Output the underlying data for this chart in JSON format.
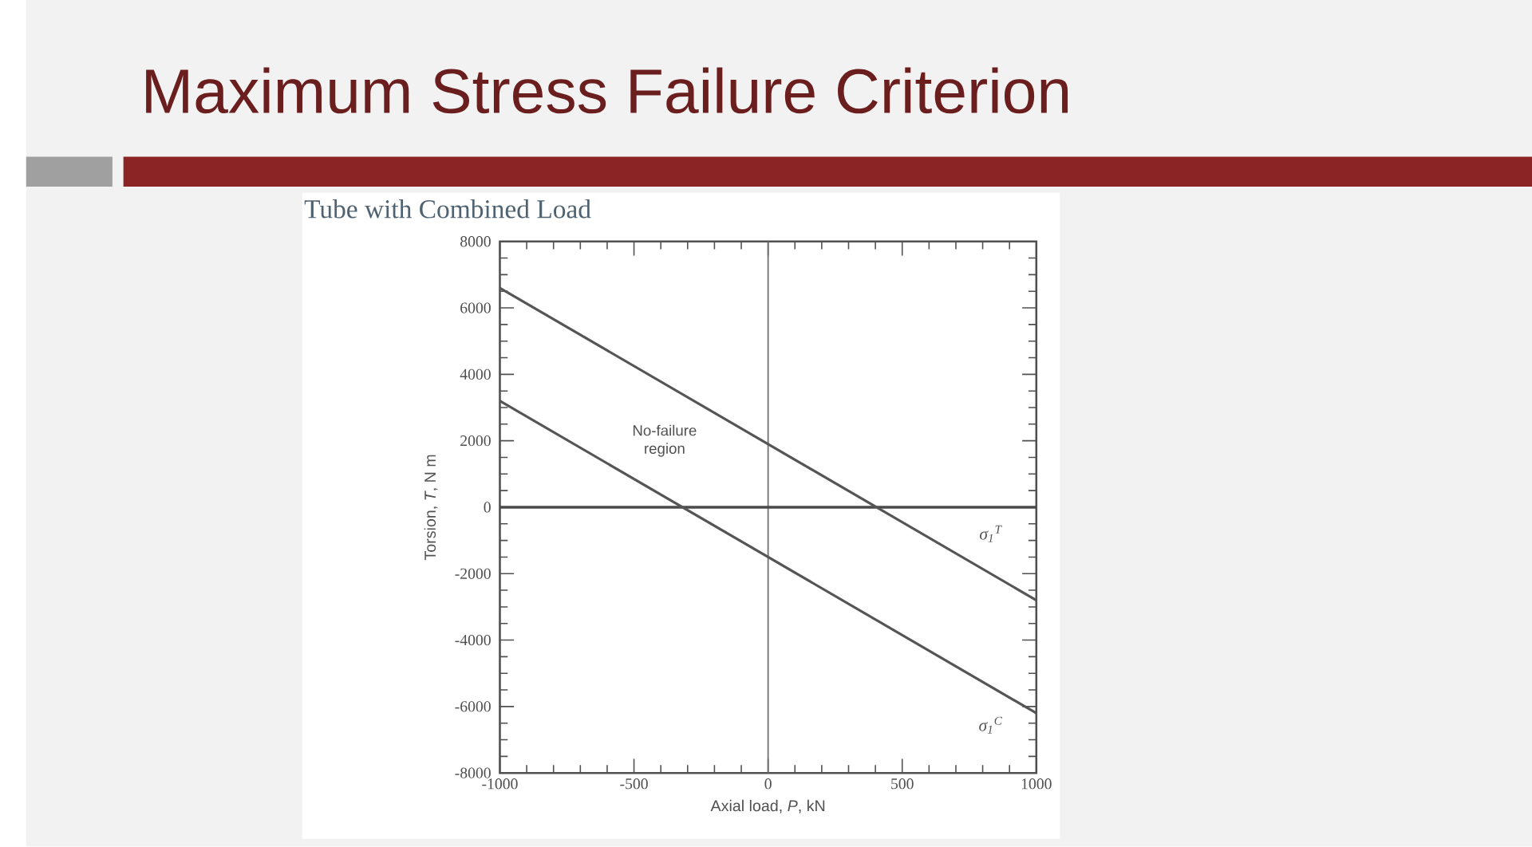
{
  "chart_data": {
    "type": "line",
    "title": "Maximum Stress Failure Criterion",
    "subtitle": "Tube with Combined Load",
    "xlabel": "Axial load, *P*, kN",
    "ylabel": "Torsion, *T*, N m",
    "x": [
      -1000,
      1000
    ],
    "series": [
      {
        "name": "σ$_{1}$$^{T}$",
        "color": "#555555",
        "values": [
          6600,
          -2800
        ]
      },
      {
        "name": "σ$_{1}$$^{C}$",
        "color": "#555555",
        "values": [
          3200,
          -6200
        ]
      }
    ],
    "xlim": [
      -1000,
      1000
    ],
    "ylim": [
      -8000,
      8000
    ],
    "xticks": [
      -1000,
      -500,
      0,
      500,
      1000
    ],
    "yticks": [
      -8000,
      -6000,
      -4000,
      -2000,
      0,
      2000,
      4000,
      6000,
      8000
    ],
    "ref_lines": [
      {
        "axis": "x",
        "value": 0,
        "color": "#6e6e6e"
      },
      {
        "axis": "y",
        "value": 0,
        "color": "#4a4a4a"
      }
    ],
    "annotations": [
      "No-failure region"
    ],
    "legend": "right",
    "marker": "none",
    "line_style": "solid"
  }
}
